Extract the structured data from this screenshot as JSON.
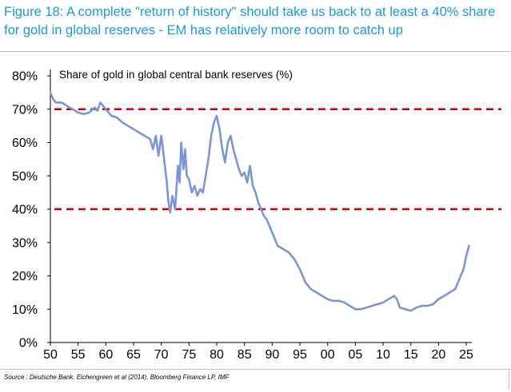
{
  "figure": {
    "title": "Figure 18: A complete \"return of history\" should take us back to at least a 40% share for gold in global reserves - EM has relatively more room to catch up",
    "source": "Source : Deutsche Bank, Eichengreen et al (2014), Bloomberg Finance LP, IMF"
  },
  "chart_data": {
    "type": "line",
    "title": "Share of gold in global central bank reserves (%)",
    "xlabel": "",
    "ylabel": "",
    "xlim": [
      1950,
      2026
    ],
    "ylim": [
      0,
      80
    ],
    "x_ticks": [
      50,
      55,
      60,
      65,
      70,
      75,
      80,
      85,
      90,
      95,
      "00",
      "05",
      10,
      15,
      20,
      25
    ],
    "y_ticks": [
      "0%",
      "10%",
      "20%",
      "30%",
      "40%",
      "50%",
      "60%",
      "70%",
      "80%"
    ],
    "grid": false,
    "line_color": "#7b96d6",
    "reference_lines": [
      {
        "y": 70,
        "color": "#cc0000",
        "style": "dashed"
      },
      {
        "y": 40,
        "color": "#cc0000",
        "style": "dashed"
      }
    ],
    "series": [
      {
        "x": [
          1950,
          1950.5,
          1951,
          1952,
          1953,
          1954,
          1955,
          1956,
          1957,
          1958,
          1958.5,
          1959,
          1959.5,
          1960,
          1961,
          1962,
          1963,
          1964,
          1965,
          1966,
          1967,
          1968,
          1968.5,
          1969,
          1969.5,
          1970,
          1970.5,
          1971,
          1971.3,
          1971.6,
          1972,
          1972.5,
          1973,
          1973.3,
          1973.6,
          1974,
          1974.3,
          1974.6,
          1975,
          1975.5,
          1976,
          1976.5,
          1977,
          1977.5,
          1978,
          1978.5,
          1979,
          1979.5,
          1980,
          1980.5,
          1981,
          1981.5,
          1982,
          1982.5,
          1983,
          1983.5,
          1984,
          1984.5,
          1985,
          1985.5,
          1986,
          1986.5,
          1987,
          1987.5,
          1988,
          1988.5,
          1989,
          1989.5,
          1990,
          1990.5,
          1991,
          1992,
          1993,
          1994,
          1995,
          1996,
          1997,
          1998,
          1999,
          2000,
          2001,
          2002,
          2003,
          2004,
          2005,
          2006,
          2007,
          2008,
          2009,
          2010,
          2011,
          2012,
          2012.5,
          2013,
          2014,
          2015,
          2016,
          2017,
          2018,
          2019,
          2020,
          2021,
          2022,
          2023,
          2024,
          2024.5,
          2025,
          2025.5
        ],
        "values": [
          75,
          73,
          72,
          72,
          71,
          70,
          69,
          68.5,
          69,
          70.5,
          69.5,
          72,
          71,
          70,
          68,
          67.5,
          66,
          65,
          64,
          63,
          62,
          61,
          58,
          62,
          56,
          62,
          55,
          48,
          42,
          39,
          44,
          40,
          53,
          48,
          60,
          52,
          58,
          50,
          49,
          45,
          47,
          44,
          46,
          45,
          50,
          55,
          62,
          66,
          68,
          64,
          58,
          54,
          60,
          62,
          58,
          55,
          52,
          50,
          51,
          48,
          53,
          47,
          45,
          42,
          40,
          38,
          37,
          35,
          33,
          31,
          29,
          28,
          27,
          25,
          22,
          18,
          16,
          15,
          14,
          13,
          12.5,
          12.5,
          12,
          11,
          10,
          10,
          10.5,
          11,
          11.5,
          12,
          13,
          14,
          13,
          10.5,
          10,
          9.5,
          10.5,
          11,
          11,
          11.5,
          13,
          14,
          15,
          16,
          20,
          22,
          26,
          29
        ]
      }
    ]
  }
}
